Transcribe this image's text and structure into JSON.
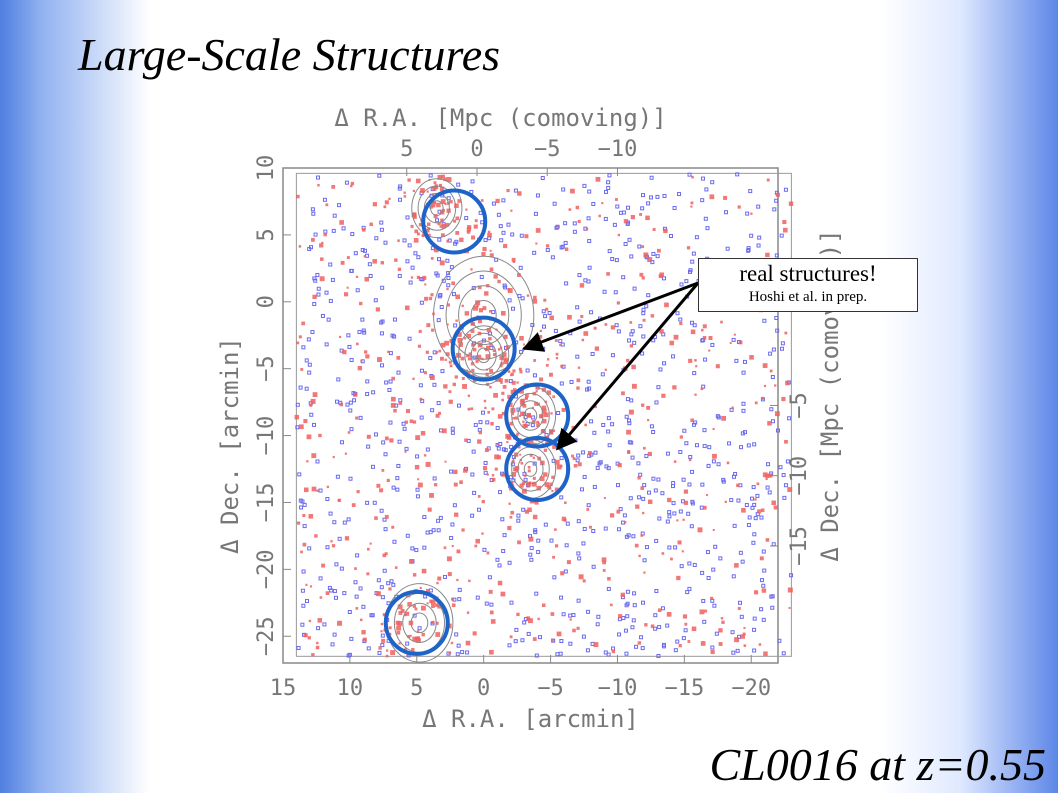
{
  "slide": {
    "title": "Large-Scale Structures",
    "footer": "CL0016 at z=0.55"
  },
  "callout": {
    "main": "real structures!",
    "sub": "Hoshi et al. in prep."
  },
  "chart_data": {
    "type": "scatter",
    "xlabel": "Δ R.A. [arcmin]",
    "ylabel": "Δ Dec. [arcmin]",
    "top_label": "Δ R.A. [Mpc (comoving)]",
    "right_label": "Δ Dec. [Mpc (comoving)]",
    "xlim": [
      15,
      -22
    ],
    "ylim": [
      -27,
      10
    ],
    "grid": false,
    "x_ticks": [
      "15",
      "10",
      "5",
      "0",
      "−5",
      "−10",
      "−15",
      "−20"
    ],
    "x_tick_values": [
      15,
      10,
      5,
      0,
      -5,
      -10,
      -15,
      -20
    ],
    "y_ticks": [
      "10",
      "5",
      "0",
      "−5",
      "−10",
      "−15",
      "−20",
      "−25"
    ],
    "y_tick_values": [
      10,
      5,
      0,
      -5,
      -10,
      -15,
      -20,
      -25
    ],
    "top_ticks": [
      "5",
      "0",
      "−5",
      "−10"
    ],
    "top_tick_values": [
      5,
      0,
      -5,
      -10
    ],
    "right_ticks": [
      "5",
      "−5",
      "−10",
      "−15"
    ],
    "right_tick_values": [
      5,
      -5,
      -10,
      -15
    ],
    "field_ra_range": [
      14,
      -23
    ],
    "field_dec_range": [
      -26.5,
      9.6
    ],
    "series": [
      {
        "color": "#f06060",
        "count": 900
      },
      {
        "color": "#6a6af0",
        "count": 850
      }
    ],
    "structures": [
      {
        "ra": 3.5,
        "dec": 7.0,
        "r": 1.5
      },
      {
        "ra": 0.0,
        "dec": -1.0,
        "r": 3.0
      },
      {
        "ra": 0.0,
        "dec": -4.0,
        "r": 1.5
      },
      {
        "ra": -3.5,
        "dec": -8.5,
        "r": 1.5
      },
      {
        "ra": -3.5,
        "dec": -12.5,
        "r": 1.5
      },
      {
        "ra": 4.8,
        "dec": -24.0,
        "r": 2.0
      }
    ],
    "circled": [
      {
        "ra": 2.2,
        "dec": 6.0
      },
      {
        "ra": 0.0,
        "dec": -3.5
      },
      {
        "ra": -4.0,
        "dec": -8.5
      },
      {
        "ra": -4.0,
        "dec": -12.5
      },
      {
        "ra": 5.0,
        "dec": -24.0
      }
    ],
    "annotation_arrows": [
      {
        "to_ra": -3.0,
        "to_dec": -3.5
      },
      {
        "to_ra": -5.5,
        "to_dec": -11.0
      }
    ]
  }
}
